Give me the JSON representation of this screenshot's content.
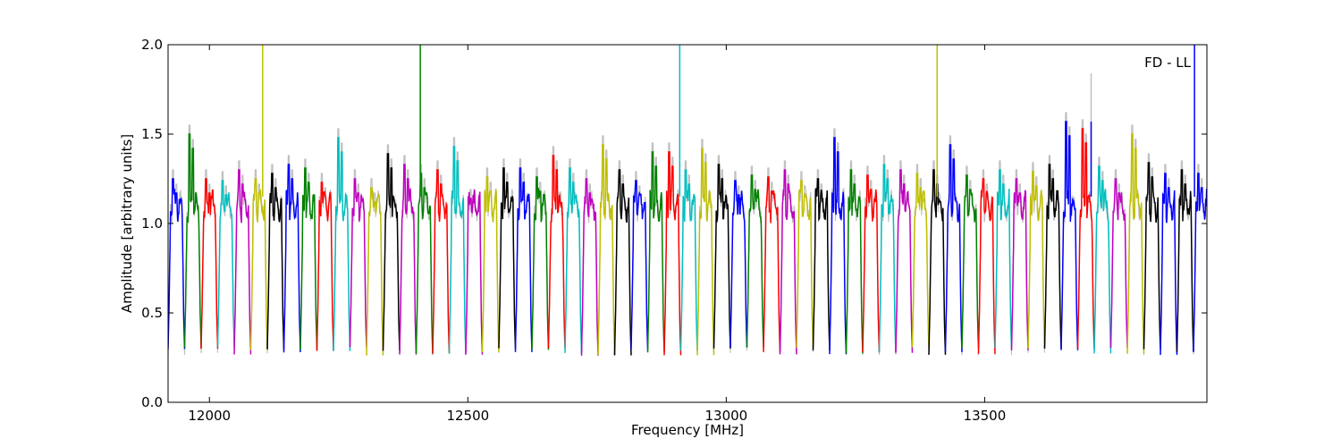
{
  "chart_data": {
    "type": "line",
    "xlabel": "Frequency [MHz]",
    "ylabel": "Amplitude [arbitrary units]",
    "annotation": "FD - LL",
    "xlim": [
      11920,
      13930
    ],
    "ylim": [
      0,
      2.0
    ],
    "x_ticks": [
      12000,
      12500,
      13000,
      13500
    ],
    "x_tick_labels": [
      "12000",
      "12500",
      "13000",
      "13500"
    ],
    "y_ticks": [
      0.0,
      0.5,
      1.0,
      1.5,
      2.0
    ],
    "y_tick_labels": [
      "0.0",
      "0.5",
      "1.0",
      "1.5",
      "2.0"
    ],
    "grid": false,
    "legend": "none",
    "colors": [
      "#0000ff",
      "#008000",
      "#ff0000",
      "#00bfbf",
      "#bf00bf",
      "#bfbf00",
      "#000000"
    ],
    "background_color": "#c0c0c0",
    "channel_width_mhz": 32,
    "channels": [
      {
        "start": 11920,
        "color": "#0000ff",
        "peak": 1.25
      },
      {
        "start": 11952,
        "color": "#008000",
        "peak": 1.5
      },
      {
        "start": 11984,
        "color": "#ff0000",
        "peak": 1.25
      },
      {
        "start": 12016,
        "color": "#00bfbf",
        "peak": 1.24
      },
      {
        "start": 12048,
        "color": "#bf00bf",
        "peak": 1.3
      },
      {
        "start": 12080,
        "color": "#bfbf00",
        "peak": 1.25
      },
      {
        "start": 12112,
        "color": "#000000",
        "peak": 1.28
      },
      {
        "start": 12144,
        "color": "#0000ff",
        "peak": 1.33
      },
      {
        "start": 12176,
        "color": "#008000",
        "peak": 1.31
      },
      {
        "start": 12208,
        "color": "#ff0000",
        "peak": 1.23
      },
      {
        "start": 12240,
        "color": "#00bfbf",
        "peak": 1.48
      },
      {
        "start": 12272,
        "color": "#bf00bf",
        "peak": 1.25
      },
      {
        "start": 12304,
        "color": "#bfbf00",
        "peak": 1.2
      },
      {
        "start": 12336,
        "color": "#000000",
        "peak": 1.39
      },
      {
        "start": 12368,
        "color": "#bf00bf",
        "peak": 1.33
      },
      {
        "start": 12400,
        "color": "#008000",
        "peak": 1.28
      },
      {
        "start": 12432,
        "color": "#ff0000",
        "peak": 1.3
      },
      {
        "start": 12464,
        "color": "#00bfbf",
        "peak": 1.43
      },
      {
        "start": 12496,
        "color": "#bf00bf",
        "peak": 1.14
      },
      {
        "start": 12528,
        "color": "#bfbf00",
        "peak": 1.26
      },
      {
        "start": 12560,
        "color": "#000000",
        "peak": 1.31
      },
      {
        "start": 12592,
        "color": "#0000ff",
        "peak": 1.31
      },
      {
        "start": 12624,
        "color": "#008000",
        "peak": 1.26
      },
      {
        "start": 12656,
        "color": "#ff0000",
        "peak": 1.38
      },
      {
        "start": 12688,
        "color": "#00bfbf",
        "peak": 1.31
      },
      {
        "start": 12720,
        "color": "#bf00bf",
        "peak": 1.25
      },
      {
        "start": 12752,
        "color": "#bfbf00",
        "peak": 1.44
      },
      {
        "start": 12784,
        "color": "#000000",
        "peak": 1.3
      },
      {
        "start": 12816,
        "color": "#0000ff",
        "peak": 1.24
      },
      {
        "start": 12848,
        "color": "#008000",
        "peak": 1.4
      },
      {
        "start": 12880,
        "color": "#ff0000",
        "peak": 1.4
      },
      {
        "start": 12912,
        "color": "#00bfbf",
        "peak": 1.3
      },
      {
        "start": 12944,
        "color": "#bfbf00",
        "peak": 1.42
      },
      {
        "start": 12976,
        "color": "#000000",
        "peak": 1.33
      },
      {
        "start": 13008,
        "color": "#0000ff",
        "peak": 1.24
      },
      {
        "start": 13040,
        "color": "#008000",
        "peak": 1.27
      },
      {
        "start": 13072,
        "color": "#ff0000",
        "peak": 1.26
      },
      {
        "start": 13104,
        "color": "#bf00bf",
        "peak": 1.3
      },
      {
        "start": 13136,
        "color": "#bfbf00",
        "peak": 1.24
      },
      {
        "start": 13168,
        "color": "#000000",
        "peak": 1.25
      },
      {
        "start": 13200,
        "color": "#0000ff",
        "peak": 1.48
      },
      {
        "start": 13232,
        "color": "#008000",
        "peak": 1.3
      },
      {
        "start": 13264,
        "color": "#ff0000",
        "peak": 1.27
      },
      {
        "start": 13296,
        "color": "#00bfbf",
        "peak": 1.33
      },
      {
        "start": 13328,
        "color": "#bf00bf",
        "peak": 1.3
      },
      {
        "start": 13360,
        "color": "#bfbf00",
        "peak": 1.28
      },
      {
        "start": 13392,
        "color": "#000000",
        "peak": 1.3
      },
      {
        "start": 13424,
        "color": "#0000ff",
        "peak": 1.44
      },
      {
        "start": 13456,
        "color": "#008000",
        "peak": 1.27
      },
      {
        "start": 13488,
        "color": "#ff0000",
        "peak": 1.25
      },
      {
        "start": 13520,
        "color": "#00bfbf",
        "peak": 1.3
      },
      {
        "start": 13552,
        "color": "#bf00bf",
        "peak": 1.25
      },
      {
        "start": 13584,
        "color": "#bfbf00",
        "peak": 1.29
      },
      {
        "start": 13616,
        "color": "#000000",
        "peak": 1.33
      },
      {
        "start": 13648,
        "color": "#0000ff",
        "peak": 1.57
      },
      {
        "start": 13680,
        "color": "#ff0000",
        "peak": 1.53
      },
      {
        "start": 13712,
        "color": "#00bfbf",
        "peak": 1.32
      },
      {
        "start": 13744,
        "color": "#bf00bf",
        "peak": 1.25
      },
      {
        "start": 13776,
        "color": "#bfbf00",
        "peak": 1.5
      },
      {
        "start": 13808,
        "color": "#000000",
        "peak": 1.34
      },
      {
        "start": 13840,
        "color": "#0000ff",
        "peak": 1.28
      },
      {
        "start": 13872,
        "color": "#000000",
        "peak": 1.3
      },
      {
        "start": 13904,
        "color": "#0000ff",
        "peak": 1.28
      }
    ],
    "spikes": [
      {
        "x": 12103,
        "y": 2.0,
        "color": "#bfbf00"
      },
      {
        "x": 12408,
        "y": 2.0,
        "color": "#008000"
      },
      {
        "x": 12910,
        "y": 2.0,
        "color": "#00bfbf"
      },
      {
        "x": 13408,
        "y": 2.0,
        "color": "#bfbf00"
      },
      {
        "x": 13706,
        "y": 1.84,
        "color": "#c0c0c0"
      },
      {
        "x": 13706,
        "y": 1.57,
        "color": "#0000ff"
      },
      {
        "x": 13906,
        "y": 2.0,
        "color": "#0000ff"
      }
    ]
  }
}
